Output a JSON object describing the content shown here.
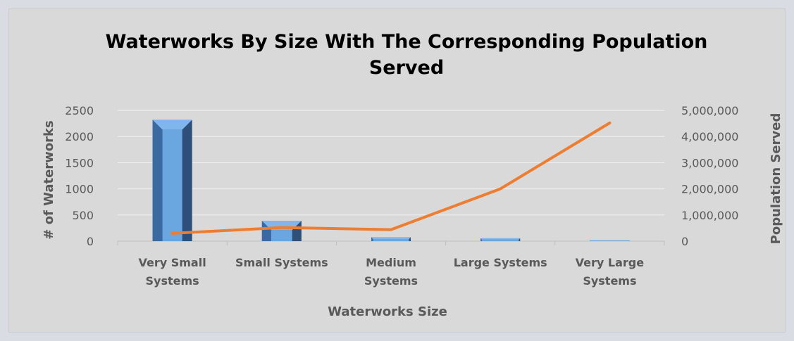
{
  "chart_data": {
    "type": "bar",
    "title_lines": [
      "Waterworks By Size With The Corresponding Population",
      "Served"
    ],
    "categories": [
      [
        "Very Small",
        "Systems"
      ],
      [
        "Small Systems"
      ],
      [
        "Medium",
        "Systems"
      ],
      [
        "Large Systems"
      ],
      [
        "Very Large",
        "Systems"
      ]
    ],
    "xlabel": "Waterworks Size",
    "ylabel": "# of Waterworks",
    "y2label": "Population Served",
    "ylim": [
      0,
      2500
    ],
    "y2lim": [
      0,
      5000000
    ],
    "yticks": [
      "0",
      "500",
      "1000",
      "1500",
      "2000",
      "2500"
    ],
    "y2ticks": [
      "0",
      "1,000,000",
      "2,000,000",
      "3,000,000",
      "4,000,000",
      "5,000,000"
    ],
    "grid": true,
    "series": [
      {
        "type": "bar",
        "axis": "left",
        "values": [
          2320,
          390,
          75,
          55,
          15
        ]
      },
      {
        "type": "line",
        "axis": "right",
        "values": [
          300000,
          520000,
          440000,
          2000000,
          4520000
        ]
      }
    ],
    "colors": {
      "bar_front": "#4f81bd",
      "bar_top": "#7fb7ec",
      "bar_left": "#3a6a9f",
      "bar_right": "#2d4f78",
      "bar_face_inner": "#6aa6e0",
      "line": "#ed7d31",
      "grid": "#f2f2f2",
      "axis": "#bfbfbf"
    }
  }
}
